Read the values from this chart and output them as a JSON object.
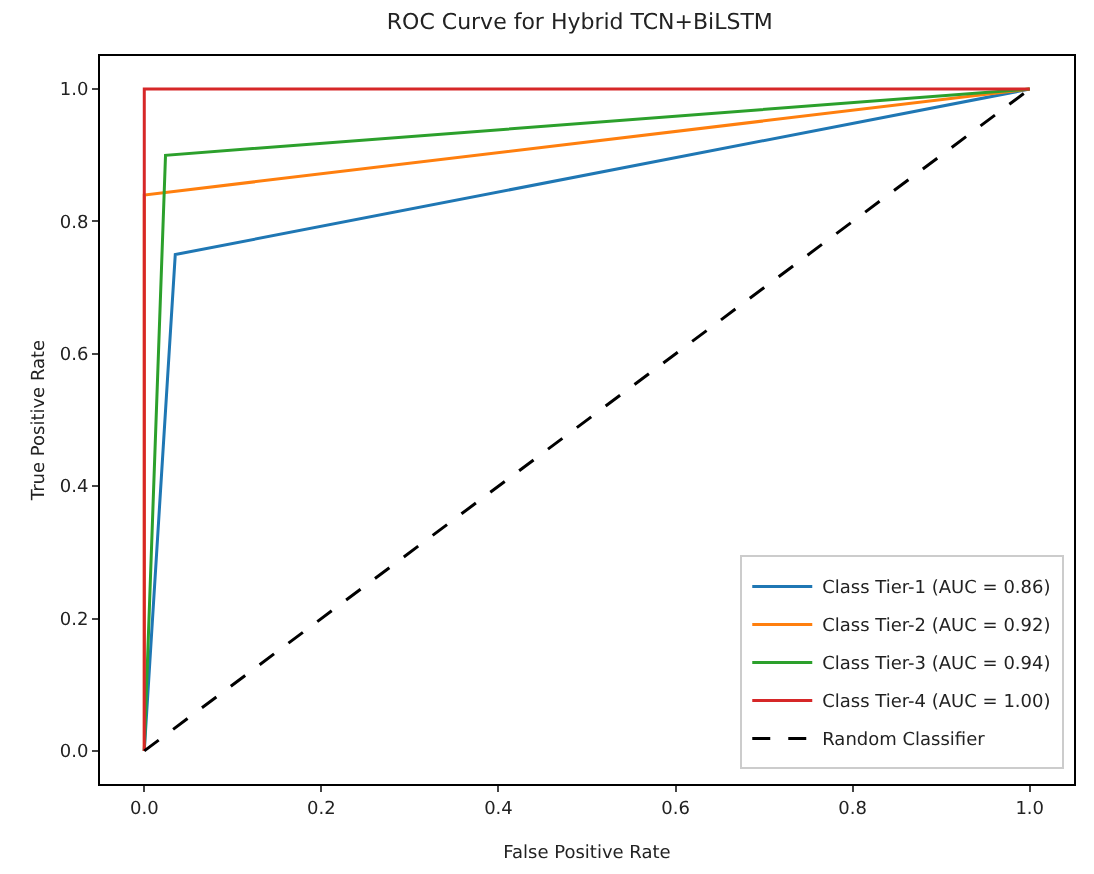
{
  "chart_data": {
    "type": "line",
    "title": "ROC Curve for Hybrid TCN+BiLSTM",
    "xlabel": "False Positive Rate",
    "ylabel": "True Positive Rate",
    "xlim": [
      -0.05,
      1.05
    ],
    "ylim": [
      -0.05,
      1.05
    ],
    "xticks": [
      {
        "value": 0,
        "label": "0.0"
      },
      0.2,
      0.4,
      0.6,
      0.8,
      {
        "value": 1,
        "label": "1.0"
      }
    ],
    "yticks": [
      {
        "value": 0,
        "label": "0.0"
      },
      0.2,
      0.4,
      0.6,
      0.8,
      {
        "value": 1,
        "label": "1.0"
      }
    ],
    "series": [
      {
        "name": "Class Tier-1 (AUC = 0.86)",
        "color": "#1f77b4",
        "x": [
          0,
          0.035,
          1
        ],
        "values": [
          0,
          0.75,
          1
        ]
      },
      {
        "name": "Class Tier-2 (AUC = 0.92)",
        "color": "#ff7f0e",
        "x": [
          0,
          0,
          1
        ],
        "values": [
          0,
          0.84,
          1
        ]
      },
      {
        "name": "Class Tier-3 (AUC = 0.94)",
        "color": "#2ca02c",
        "x": [
          0,
          0.024,
          1
        ],
        "values": [
          0,
          0.9,
          1
        ]
      },
      {
        "name": "Class Tier-4 (AUC = 1.00)",
        "color": "#d62728",
        "x": [
          0,
          0,
          1
        ],
        "values": [
          0,
          1,
          1
        ]
      },
      {
        "name": "Random Classifier",
        "color": "#000000",
        "x": [
          0,
          1
        ],
        "values": [
          0,
          1
        ],
        "line_style": "dashed"
      }
    ],
    "grid": false,
    "legend": "bottom right",
    "marker": "none"
  }
}
